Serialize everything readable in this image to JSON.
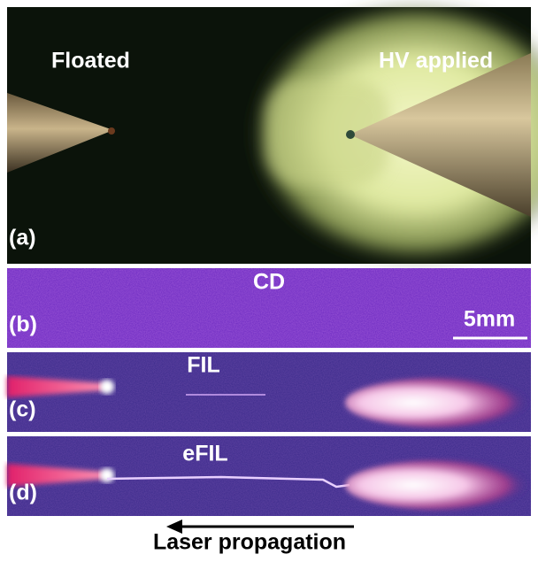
{
  "panel_a": {
    "label": "(a)",
    "left": "Floated",
    "right": "HV applied"
  },
  "panel_b": {
    "label": "(b)",
    "title": "CD",
    "scale_bar": "5mm"
  },
  "panel_c": {
    "label": "(c)",
    "title": "FIL"
  },
  "panel_d": {
    "label": "(d)",
    "title": "eFIL"
  },
  "caption": "Laser propagation"
}
